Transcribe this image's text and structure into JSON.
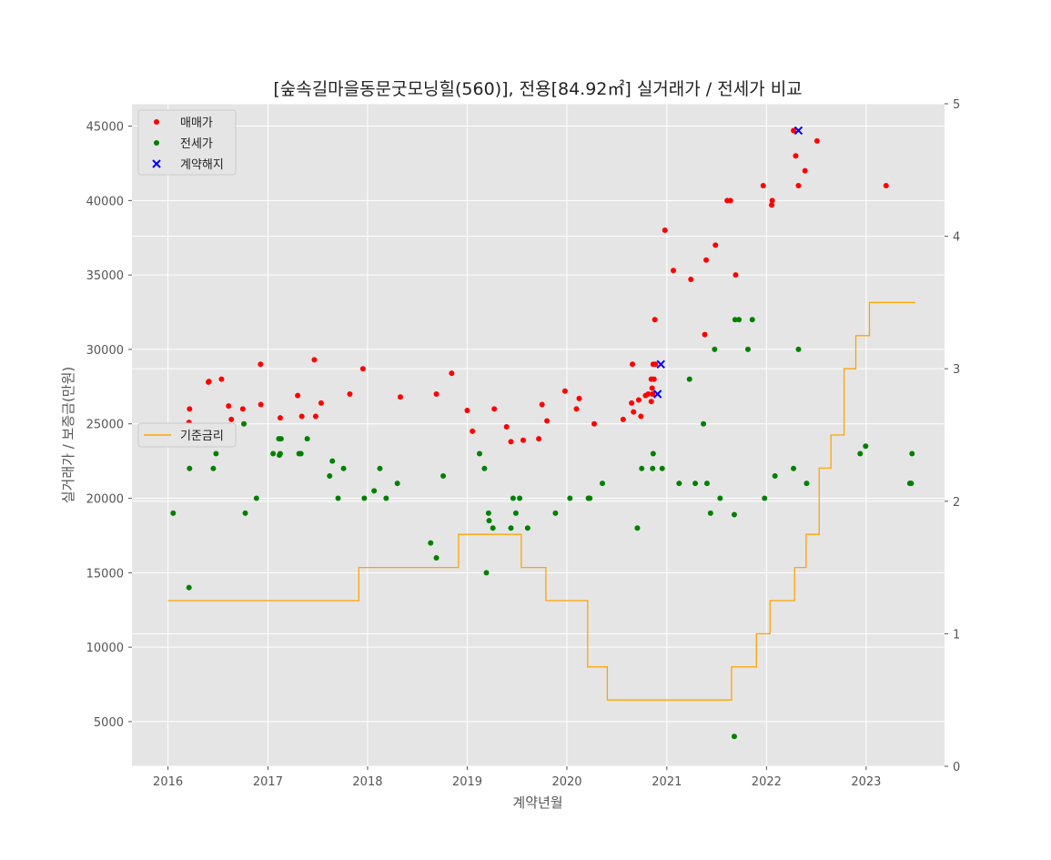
{
  "chart_data": {
    "type": "scatter",
    "title": "[숲속길마을동문굿모닝힐(560)], 전용[84.92㎡] 실거래가 / 전세가 비교",
    "xlabel": "계약년월",
    "ylabel": "실거래가 / 보증금(만원)",
    "xlim": [
      "2015-08-22",
      "2023-10-15"
    ],
    "ylim": [
      2000,
      46500
    ],
    "y2lim": [
      0,
      5
    ],
    "xticks": [
      "2016",
      "2017",
      "2018",
      "2019",
      "2020",
      "2021",
      "2022",
      "2023"
    ],
    "yticks": [
      5000,
      10000,
      15000,
      20000,
      25000,
      30000,
      35000,
      40000,
      45000
    ],
    "y2ticks": [
      0,
      1,
      2,
      3,
      4,
      5
    ],
    "grid": true,
    "background": "#e5e5e5",
    "legend_scatter": {
      "placement": "upper-left",
      "entries": [
        "매매가",
        "전세가",
        "계약해지"
      ]
    },
    "legend_line": {
      "placement": "center-left",
      "entries": [
        "기준금리"
      ]
    },
    "series": [
      {
        "name": "매매가",
        "kind": "scatter",
        "color": "#ff0000",
        "points": [
          [
            "2016-03-18",
            25100
          ],
          [
            "2016-03-20",
            26000
          ],
          [
            "2016-05-28",
            27800
          ],
          [
            "2016-05-30",
            27850
          ],
          [
            "2016-07-15",
            28000
          ],
          [
            "2016-08-10",
            26200
          ],
          [
            "2016-08-20",
            25300
          ],
          [
            "2016-10-01",
            26000
          ],
          [
            "2016-12-05",
            29000
          ],
          [
            "2016-12-06",
            26300
          ],
          [
            "2017-02-15",
            25400
          ],
          [
            "2017-04-20",
            26900
          ],
          [
            "2017-05-05",
            25500
          ],
          [
            "2017-06-20",
            29300
          ],
          [
            "2017-06-25",
            25500
          ],
          [
            "2017-07-15",
            26400
          ],
          [
            "2017-10-28",
            27000
          ],
          [
            "2017-12-15",
            28700
          ],
          [
            "2018-05-01",
            26800
          ],
          [
            "2018-09-10",
            27000
          ],
          [
            "2018-11-05",
            28400
          ],
          [
            "2019-01-01",
            25900
          ],
          [
            "2019-01-20",
            24500
          ],
          [
            "2019-04-10",
            26000
          ],
          [
            "2019-05-25",
            24800
          ],
          [
            "2019-06-10",
            23800
          ],
          [
            "2019-07-25",
            23900
          ],
          [
            "2019-09-20",
            24000
          ],
          [
            "2019-10-02",
            26300
          ],
          [
            "2019-10-20",
            25200
          ],
          [
            "2019-12-25",
            27200
          ],
          [
            "2020-02-05",
            26000
          ],
          [
            "2020-02-15",
            26700
          ],
          [
            "2020-03-20",
            20000
          ],
          [
            "2020-04-10",
            25000
          ],
          [
            "2020-07-25",
            25300
          ],
          [
            "2020-08-25",
            26400
          ],
          [
            "2020-08-28",
            29000
          ],
          [
            "2020-09-01",
            25800
          ],
          [
            "2020-09-20",
            26600
          ],
          [
            "2020-09-28",
            25500
          ],
          [
            "2020-10-15",
            26900
          ],
          [
            "2020-10-25",
            27000
          ],
          [
            "2020-11-05",
            26500
          ],
          [
            "2020-11-05",
            28000
          ],
          [
            "2020-11-08",
            27400
          ],
          [
            "2020-11-10",
            27000
          ],
          [
            "2020-11-12",
            29000
          ],
          [
            "2020-11-15",
            28000
          ],
          [
            "2020-11-18",
            32000
          ],
          [
            "2020-11-20",
            29000
          ],
          [
            "2020-12-25",
            38000
          ],
          [
            "2021-01-25",
            35300
          ],
          [
            "2021-03-30",
            34700
          ],
          [
            "2021-05-20",
            31000
          ],
          [
            "2021-05-25",
            36000
          ],
          [
            "2021-06-28",
            37000
          ],
          [
            "2021-08-10",
            40000
          ],
          [
            "2021-08-22",
            40000
          ],
          [
            "2021-09-10",
            35000
          ],
          [
            "2021-12-20",
            41000
          ],
          [
            "2022-01-20",
            39700
          ],
          [
            "2022-01-22",
            40000
          ],
          [
            "2022-04-10",
            44700
          ],
          [
            "2022-04-18",
            43000
          ],
          [
            "2022-04-28",
            41000
          ],
          [
            "2022-05-22",
            42000
          ],
          [
            "2022-07-05",
            44000
          ],
          [
            "2023-03-15",
            41000
          ]
        ]
      },
      {
        "name": "전세가",
        "kind": "scatter",
        "color": "#008000",
        "points": [
          [
            "2016-01-20",
            19000
          ],
          [
            "2016-03-18",
            14000
          ],
          [
            "2016-03-20",
            22000
          ],
          [
            "2016-06-15",
            22000
          ],
          [
            "2016-06-25",
            23000
          ],
          [
            "2016-10-05",
            25000
          ],
          [
            "2016-10-10",
            19000
          ],
          [
            "2016-11-20",
            20000
          ],
          [
            "2017-01-20",
            23000
          ],
          [
            "2017-02-10",
            24000
          ],
          [
            "2017-02-12",
            22900
          ],
          [
            "2017-02-15",
            23000
          ],
          [
            "2017-02-18",
            24000
          ],
          [
            "2017-04-25",
            23000
          ],
          [
            "2017-05-02",
            23000
          ],
          [
            "2017-05-25",
            24000
          ],
          [
            "2017-08-15",
            21500
          ],
          [
            "2017-08-25",
            22500
          ],
          [
            "2017-09-15",
            20000
          ],
          [
            "2017-10-05",
            22000
          ],
          [
            "2017-12-20",
            20000
          ],
          [
            "2018-01-25",
            20500
          ],
          [
            "2018-02-15",
            22000
          ],
          [
            "2018-03-10",
            20000
          ],
          [
            "2018-04-20",
            21000
          ],
          [
            "2018-08-20",
            17000
          ],
          [
            "2018-09-10",
            16000
          ],
          [
            "2018-10-05",
            21500
          ],
          [
            "2019-02-15",
            23000
          ],
          [
            "2019-03-05",
            22000
          ],
          [
            "2019-03-12",
            15000
          ],
          [
            "2019-03-20",
            19000
          ],
          [
            "2019-03-22",
            18500
          ],
          [
            "2019-04-05",
            18000
          ],
          [
            "2019-06-10",
            18000
          ],
          [
            "2019-06-18",
            20000
          ],
          [
            "2019-06-28",
            19000
          ],
          [
            "2019-07-12",
            20000
          ],
          [
            "2019-08-10",
            18000
          ],
          [
            "2019-11-20",
            19000
          ],
          [
            "2020-01-12",
            20000
          ],
          [
            "2020-03-20",
            20000
          ],
          [
            "2020-03-25",
            20000
          ],
          [
            "2020-05-10",
            21000
          ],
          [
            "2020-09-15",
            18000
          ],
          [
            "2020-10-01",
            22000
          ],
          [
            "2020-11-10",
            22000
          ],
          [
            "2020-11-12",
            23000
          ],
          [
            "2020-12-15",
            22000
          ],
          [
            "2021-02-15",
            21000
          ],
          [
            "2021-03-25",
            28000
          ],
          [
            "2021-04-15",
            21000
          ],
          [
            "2021-05-15",
            25000
          ],
          [
            "2021-05-28",
            21000
          ],
          [
            "2021-06-10",
            19000
          ],
          [
            "2021-06-25",
            30000
          ],
          [
            "2021-07-15",
            20000
          ],
          [
            "2021-09-05",
            4000
          ],
          [
            "2021-09-05",
            18900
          ],
          [
            "2021-09-08",
            32000
          ],
          [
            "2021-09-22",
            32000
          ],
          [
            "2021-10-25",
            30000
          ],
          [
            "2021-11-10",
            32000
          ],
          [
            "2021-12-25",
            20000
          ],
          [
            "2022-02-01",
            21500
          ],
          [
            "2022-04-10",
            22000
          ],
          [
            "2022-04-28",
            30000
          ],
          [
            "2022-05-28",
            21000
          ],
          [
            "2022-12-10",
            23000
          ],
          [
            "2022-12-30",
            23500
          ],
          [
            "2023-06-10",
            21000
          ],
          [
            "2023-06-15",
            21000
          ],
          [
            "2023-06-18",
            23000
          ]
        ]
      },
      {
        "name": "계약해지",
        "kind": "scatter",
        "marker": "x",
        "color": "#0000ff",
        "points": [
          [
            "2020-11-28",
            27000
          ],
          [
            "2020-12-10",
            29000
          ],
          [
            "2022-04-28",
            44700
          ]
        ]
      },
      {
        "name": "기준금리",
        "kind": "step",
        "axis": "right",
        "color": "#ffa500",
        "points": [
          [
            "2016-01-01",
            1.25
          ],
          [
            "2017-11-30",
            1.5
          ],
          [
            "2018-11-30",
            1.75
          ],
          [
            "2019-07-18",
            1.5
          ],
          [
            "2019-10-16",
            1.25
          ],
          [
            "2020-03-17",
            0.75
          ],
          [
            "2020-05-28",
            0.5
          ],
          [
            "2021-08-26",
            0.75
          ],
          [
            "2021-11-25",
            1.0
          ],
          [
            "2022-01-14",
            1.25
          ],
          [
            "2022-04-14",
            1.5
          ],
          [
            "2022-05-26",
            1.75
          ],
          [
            "2022-07-13",
            2.25
          ],
          [
            "2022-08-25",
            2.5
          ],
          [
            "2022-10-12",
            3.0
          ],
          [
            "2022-11-24",
            3.25
          ],
          [
            "2023-01-13",
            3.5
          ],
          [
            "2023-06-30",
            3.5
          ]
        ]
      }
    ]
  }
}
